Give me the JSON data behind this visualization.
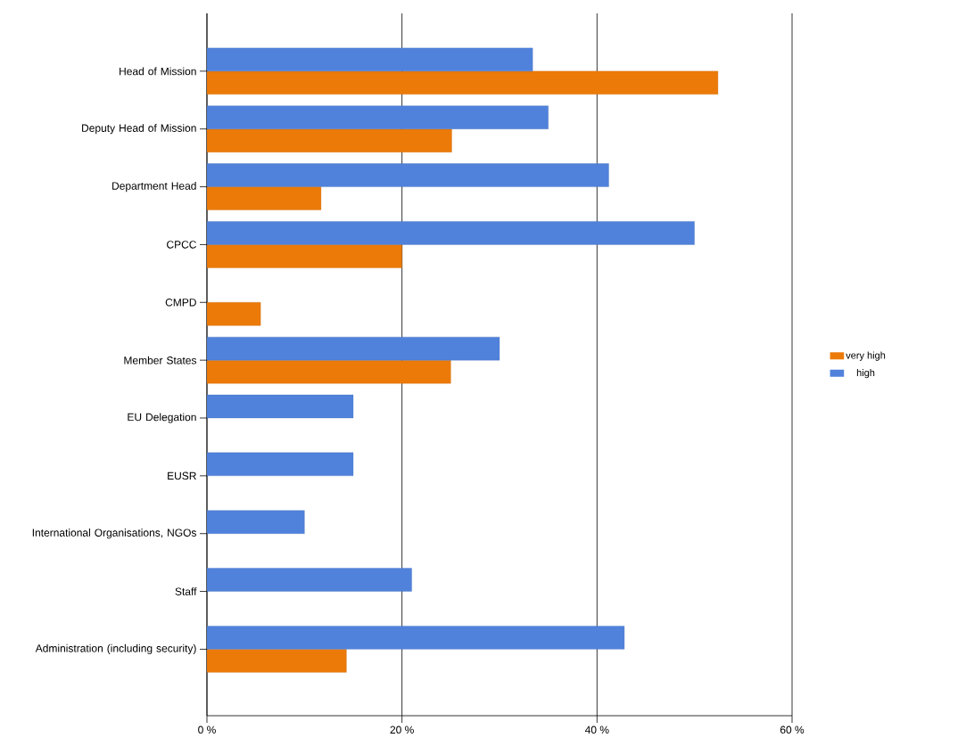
{
  "chart_data": {
    "type": "bar",
    "orientation": "horizontal",
    "categories": [
      "Head of Mission",
      "Deputy Head of Mission",
      "Department Head",
      "CPCC",
      "CMPD",
      "Member States",
      "EU Delegation",
      "EUSR",
      "International Organisations, NGOs",
      "Staff",
      "Administration (including security)"
    ],
    "series": [
      {
        "name": "very high",
        "color": "#ec7a08",
        "values": [
          52.4,
          25.1,
          11.7,
          20.0,
          5.5,
          25.0,
          null,
          null,
          null,
          null,
          14.3
        ]
      },
      {
        "name": "high",
        "color": "#5082dc",
        "values": [
          33.4,
          35.0,
          41.2,
          50.0,
          null,
          30.0,
          15.0,
          15.0,
          10.0,
          21.0,
          42.8
        ]
      }
    ],
    "xlim": [
      0,
      60
    ],
    "xticks": [
      {
        "value": 0,
        "label": "0 %"
      },
      {
        "value": 20,
        "label": "20 %"
      },
      {
        "value": 40,
        "label": "40 %"
      },
      {
        "value": 60,
        "label": "60 %"
      }
    ],
    "grid": "x",
    "legend": "right"
  }
}
